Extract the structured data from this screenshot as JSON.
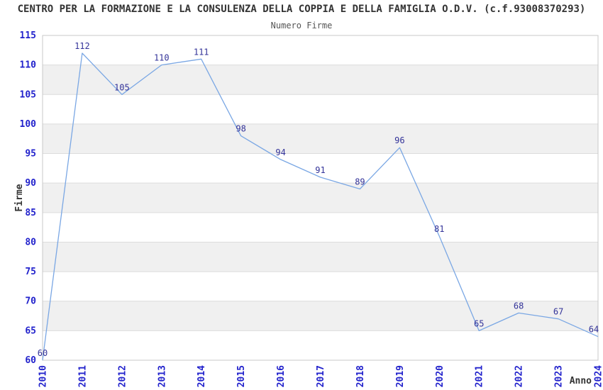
{
  "header": {
    "title": "CENTRO PER LA FORMAZIONE E LA CONSULENZA DELLA COPPIA E DELLA FAMIGLIA O.D.V. (c.f.93008370293)",
    "subtitle": "Numero Firme"
  },
  "chart_data": {
    "type": "line",
    "title": "Numero Firme",
    "categories": [
      "2010",
      "2011",
      "2012",
      "2013",
      "2014",
      "2015",
      "2016",
      "2017",
      "2018",
      "2019",
      "2020",
      "2021",
      "2022",
      "2023",
      "2024"
    ],
    "series": [
      {
        "name": "Numero Firme",
        "values": [
          60,
          112,
          105,
          110,
          111,
          98,
          94,
          91,
          89,
          96,
          81,
          65,
          68,
          67,
          64
        ]
      }
    ],
    "xlabel": "Anno",
    "ylabel": "Firme",
    "ylim": [
      60,
      115
    ],
    "ytick_step": 5,
    "grid": "horizontal gridlines with alternating shaded bands",
    "legend_position": "none",
    "data_labels_shown": true,
    "colors": {
      "line": "#7aa7e4",
      "band": "#f0f0f0",
      "gridline": "#dcdcdc",
      "plot_border": "#c8c8c8",
      "tick_label": "#2222cc",
      "data_label": "#333399",
      "axis_title": "#333333",
      "title": "#333333",
      "subtitle": "#555555",
      "background": "#ffffff"
    }
  }
}
